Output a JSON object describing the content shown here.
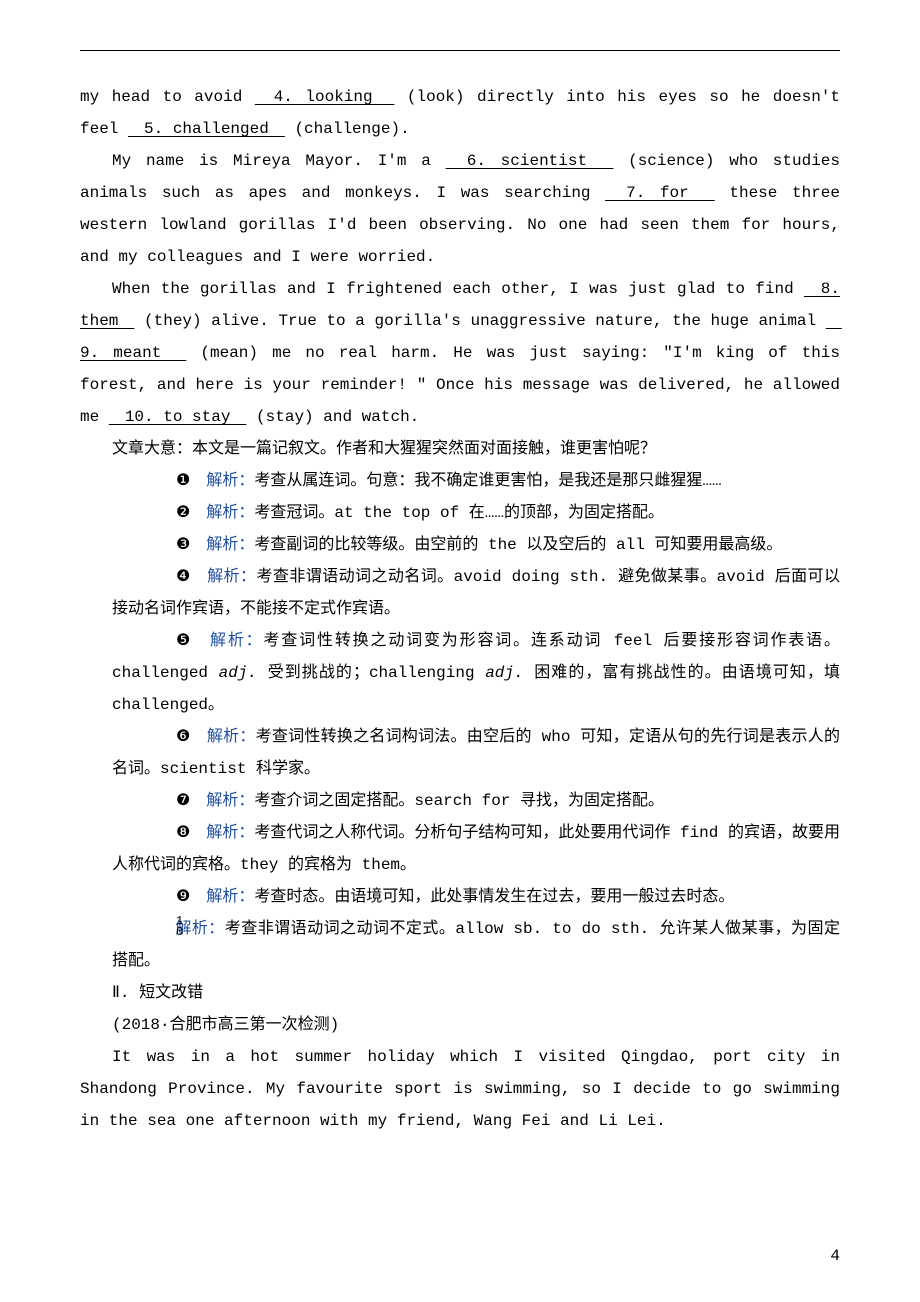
{
  "page_number": "4",
  "colors": {
    "blue": "#1f4ea1",
    "text": "#000000",
    "bg": "#ffffff"
  },
  "paragraphs": {
    "p1_before": "my head to avoid ",
    "p1_ans4": "　4. looking　",
    "p1_mid": " (look) directly into his eyes so he doesn't feel ",
    "p1_ans5": "　5. challenged　",
    "p1_after": " (challenge).",
    "p2_before": "My name is Mireya Mayor. I'm a ",
    "p2_ans6": "　6. scientist　",
    "p2_mid1": " (science) who studies animals such as apes and monkeys. I was searching ",
    "p2_ans7": "　7. for　",
    "p2_mid2": " these three western lowland gorillas I'd been observing. No one had seen them for hours, and my colleagues and I were worried.",
    "p3_before": "When the gorillas and I frightened each other, I was just glad to find ",
    "p3_ans8": "　8. them　",
    "p3_mid1": " (they) alive. True to a gorilla's unaggressive nature, the huge animal ",
    "p3_ans9": "　9. meant　",
    "p3_mid2": " (mean) me no real harm. He was just saying: \"I'm king of this forest, and here is your reminder! \" Once his message was delivered, he allowed me ",
    "p3_ans10": "　10. to stay　",
    "p3_mid3": " (stay) and watch.",
    "gist": "文章大意：本文是一篇记叙文。作者和大猩猩突然面对面接触，谁更害怕呢？",
    "label_jiexi": "解析：",
    "e1": "考查从属连词。句意：我不确定谁更害怕，是我还是那只雌猩猩……",
    "e2": "考查冠词。at the top of 在……的顶部，为固定搭配。",
    "e3": "考查副词的比较等级。由空前的 the 以及空后的 all 可知要用最高级。",
    "e4": "考查非谓语动词之动名词。avoid doing sth. 避免做某事。avoid 后面可以接动名词作宾语，不能接不定式作宾语。",
    "e5_a": "考查词性转换之动词变为形容词。连系动词 feel 后要接形容词作表语。challenged ",
    "e5_adj1": "adj.",
    "e5_b": " 受到挑战的；challenging ",
    "e5_adj2": "adj.",
    "e5_c": " 困难的，富有挑战性的。由语境可知，填 challenged。",
    "e6": "考查词性转换之名词构词法。由空后的 who 可知，定语从句的先行词是表示人的名词。scientist 科学家。",
    "e7": "考查介词之固定搭配。search for 寻找，为固定搭配。",
    "e8": "考查代词之人称代词。分析句子结构可知，此处要用代词作 find 的宾语，故要用人称代词的宾格。they 的宾格为 them。",
    "e9": "考查时态。由语境可知，此处事情发生在过去，要用一般过去时态。",
    "e10": "考查非谓语动词之动词不定式。allow sb. to do sth. 允许某人做某事，为固定搭配。",
    "sec2": "Ⅱ. 短文改错",
    "src": "(2018·合肥市高三第一次检测)",
    "essay": "It was in a hot summer holiday which I visited Qingdao, port city in Shandong Province. My favourite sport is swimming, so I decide to go swimming in the sea one afternoon with my friend, Wang Fei and Li Lei."
  },
  "circled": {
    "n1": "❶",
    "n2": "❷",
    "n3": "❸",
    "n4": "❹",
    "n5": "❺",
    "n6": "❻",
    "n7": "❼",
    "n8": "❽",
    "n9": "❾"
  }
}
